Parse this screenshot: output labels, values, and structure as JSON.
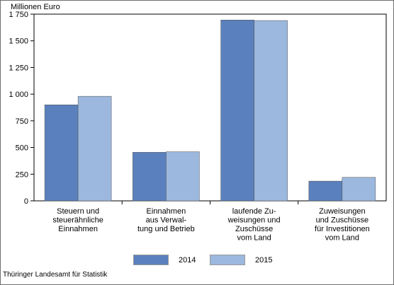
{
  "ylabel": "Millionen Euro",
  "source": "Thüringer Landesamt für Statistik",
  "chart_data": {
    "type": "bar",
    "ylabel": "Millionen Euro",
    "ylim": [
      0,
      1750
    ],
    "yticks": [
      0,
      250,
      500,
      750,
      1000,
      1250,
      1500,
      1750
    ],
    "ytick_labels": [
      "0",
      "250",
      "500",
      "750",
      "1 000",
      "1 250",
      "1 500",
      "1 750"
    ],
    "grid": false,
    "legend": "bottom",
    "categories": [
      [
        "Steuern und",
        "steuerähnliche",
        "Einnahmen"
      ],
      [
        "Einnahmen",
        "aus Verwal-",
        "tung und Betrieb"
      ],
      [
        "laufende Zu-",
        "weisungen und",
        "Zuschüsse",
        "vom Land"
      ],
      [
        "Zuweisungen",
        "und Zuschüsse",
        "für Investitionen",
        "vom Land"
      ]
    ],
    "series": [
      {
        "name": "2014",
        "color": "#5a81bd",
        "values": [
          900,
          455,
          1695,
          185
        ]
      },
      {
        "name": "2015",
        "color": "#9db8de",
        "values": [
          980,
          460,
          1690,
          220
        ]
      }
    ]
  }
}
